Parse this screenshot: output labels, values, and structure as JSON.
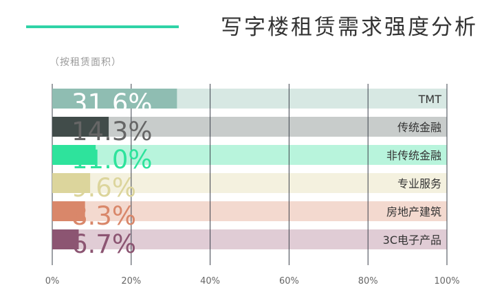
{
  "header": {
    "title": "写字楼租赁需求强度分析",
    "subtitle": "（按租赁面积）",
    "accent_color": "#2fd3a6"
  },
  "chart_data": {
    "type": "bar",
    "orientation": "horizontal",
    "title": "写字楼租赁需求强度分析",
    "subtitle": "（按租赁面积）",
    "categories": [
      "TMT",
      "传统金融",
      "非传统金融",
      "专业服务",
      "房地产建筑",
      "3C电子产品"
    ],
    "values": [
      31.6,
      14.3,
      11.0,
      9.6,
      8.3,
      6.7
    ],
    "value_labels": [
      "31.6%",
      "14.3%",
      "11.0%",
      "9.6%",
      "8.3%",
      "6.7%"
    ],
    "bar_colors": [
      "#8fbdb2",
      "#414c4a",
      "#2ee39c",
      "#dcd59c",
      "#d9876a",
      "#8c5572"
    ],
    "track_colors": [
      "#d7e8e3",
      "#c8cccb",
      "#b8f4dc",
      "#f4f1df",
      "#f3d9cf",
      "#e0ccd5"
    ],
    "label_colors": [
      "#ffffff",
      "#666666",
      "#2ee39c",
      "#dcd59c",
      "#d9876a",
      "#8c5572"
    ],
    "xlim": [
      0,
      100
    ],
    "xticks": [
      "0%",
      "20%",
      "40%",
      "60%",
      "80%",
      "100%"
    ],
    "xtick_values": [
      0,
      20,
      40,
      60,
      80,
      100
    ],
    "grid": true,
    "xlabel": "",
    "ylabel": ""
  }
}
